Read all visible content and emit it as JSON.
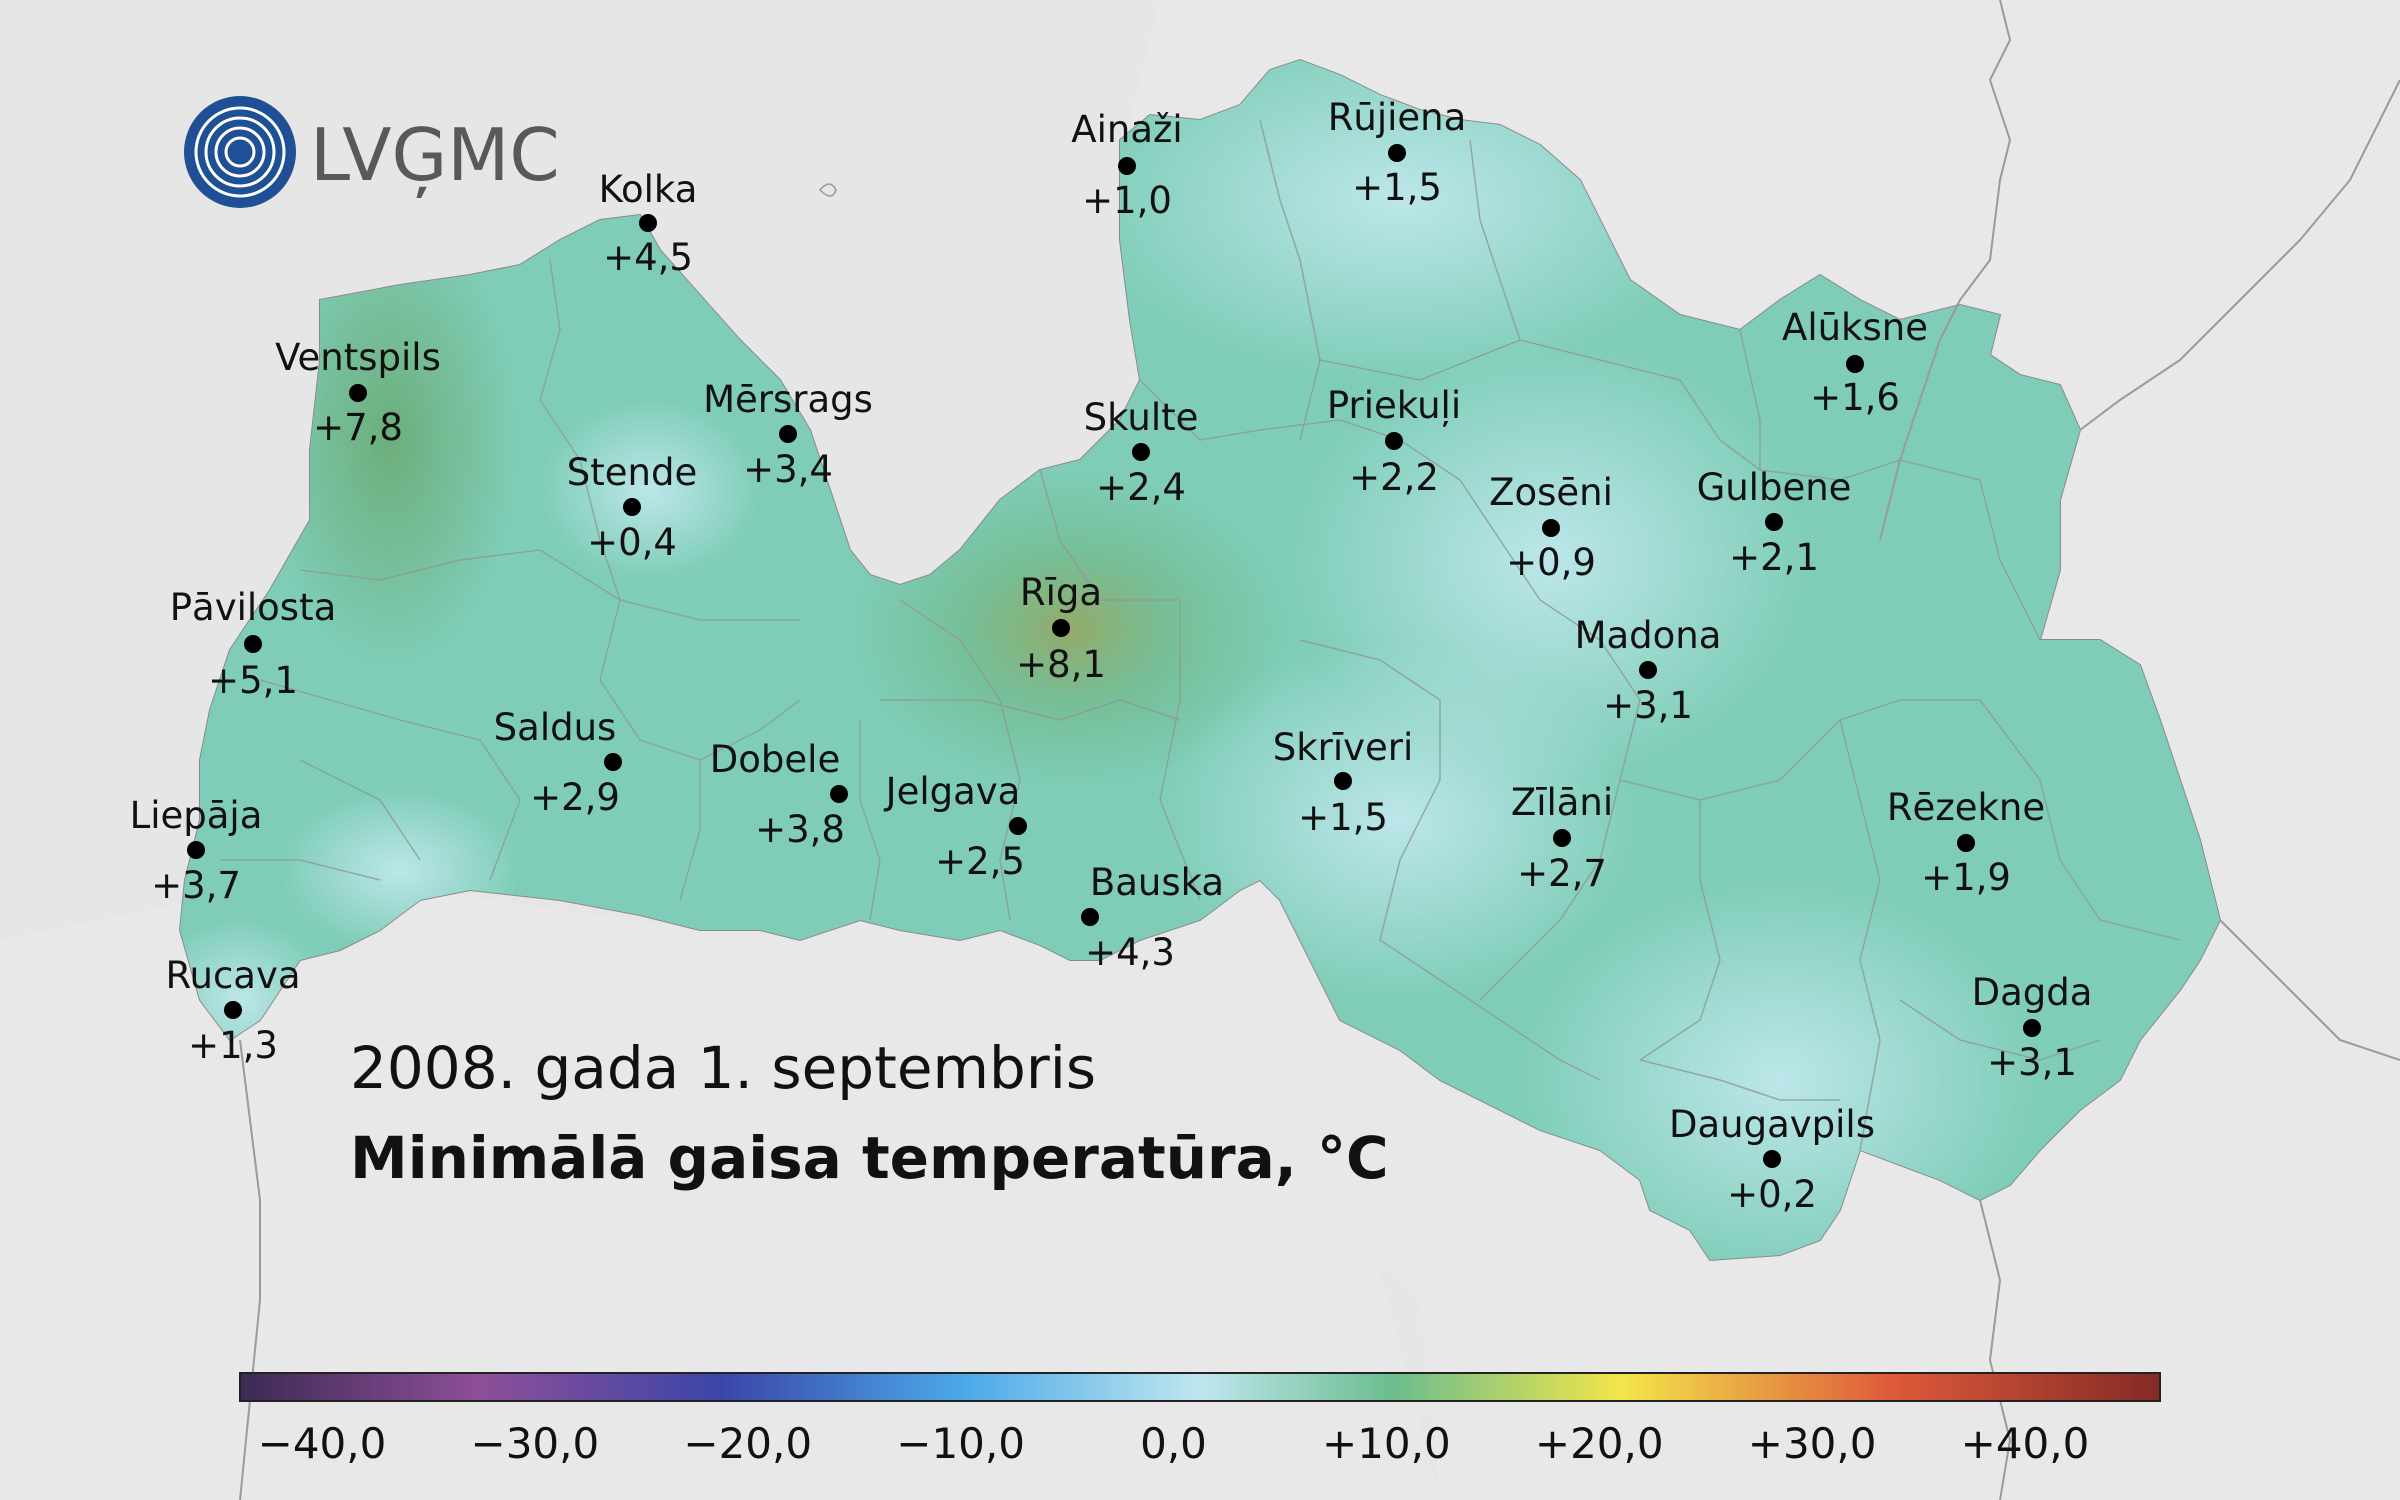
{
  "title": {
    "date": "2008. gada 1. septembris",
    "main": "Minimālā gaisa temperatūra, °C"
  },
  "logo": {
    "text": "LVĢMC",
    "icon": "lvgmc-logo-icon"
  },
  "stations": [
    {
      "id": "ainazi",
      "name": "Ainaži",
      "value": "+1,0"
    },
    {
      "id": "rujiena",
      "name": "Rūjiena",
      "value": "+1,5"
    },
    {
      "id": "kolka",
      "name": "Kolka",
      "value": "+4,5"
    },
    {
      "id": "ventspils",
      "name": "Ventspils",
      "value": "+7,8"
    },
    {
      "id": "mersrags",
      "name": "Mērsrags",
      "value": "+3,4"
    },
    {
      "id": "stende",
      "name": "Stende",
      "value": "+0,4"
    },
    {
      "id": "skulte",
      "name": "Skulte",
      "value": "+2,4"
    },
    {
      "id": "priekuli",
      "name": "Priekuļi",
      "value": "+2,2"
    },
    {
      "id": "aluksne",
      "name": "Alūksne",
      "value": "+1,6"
    },
    {
      "id": "zoseni",
      "name": "Zosēni",
      "value": "+0,9"
    },
    {
      "id": "gulbene",
      "name": "Gulbene",
      "value": "+2,1"
    },
    {
      "id": "pavilosta",
      "name": "Pāvilosta",
      "value": "+5,1"
    },
    {
      "id": "riga",
      "name": "Rīga",
      "value": "+8,1"
    },
    {
      "id": "madona",
      "name": "Madona",
      "value": "+3,1"
    },
    {
      "id": "saldus",
      "name": "Saldus",
      "value": "+2,9"
    },
    {
      "id": "dobele",
      "name": "Dobele",
      "value": "+3,8"
    },
    {
      "id": "skriveri",
      "name": "Skrīveri",
      "value": "+1,5"
    },
    {
      "id": "jelgava",
      "name": "Jelgava",
      "value": "+2,5"
    },
    {
      "id": "zilani",
      "name": "Zīlāni",
      "value": "+2,7"
    },
    {
      "id": "liepaja",
      "name": "Liepāja",
      "value": "+3,7"
    },
    {
      "id": "rezekne",
      "name": "Rēzekne",
      "value": "+1,9"
    },
    {
      "id": "bauska",
      "name": "Bauska",
      "value": "+4,3"
    },
    {
      "id": "rucava",
      "name": "Rucava",
      "value": "+1,3"
    },
    {
      "id": "dagda",
      "name": "Dagda",
      "value": "+3,1"
    },
    {
      "id": "daugavpils",
      "name": "Daugavpils",
      "value": "+0,2"
    }
  ],
  "colorbar": {
    "ticks": [
      "−40,0",
      "−30,0",
      "−20,0",
      "−10,0",
      "0,0",
      "+10,0",
      "+20,0",
      "+30,0",
      "+40,0"
    ],
    "colors": [
      "#3c2a55",
      "#8e4f98",
      "#3b45a8",
      "#4aa8e8",
      "#bfe6ef",
      "#6bbd8e",
      "#f3e54a",
      "#de5a3a",
      "#842a26"
    ]
  },
  "colors": {
    "sea": "#e6e6e6",
    "land_other": "#e6e6e6",
    "latvia_base": "#7fcdb8",
    "border_line": "#9a9a9a"
  }
}
